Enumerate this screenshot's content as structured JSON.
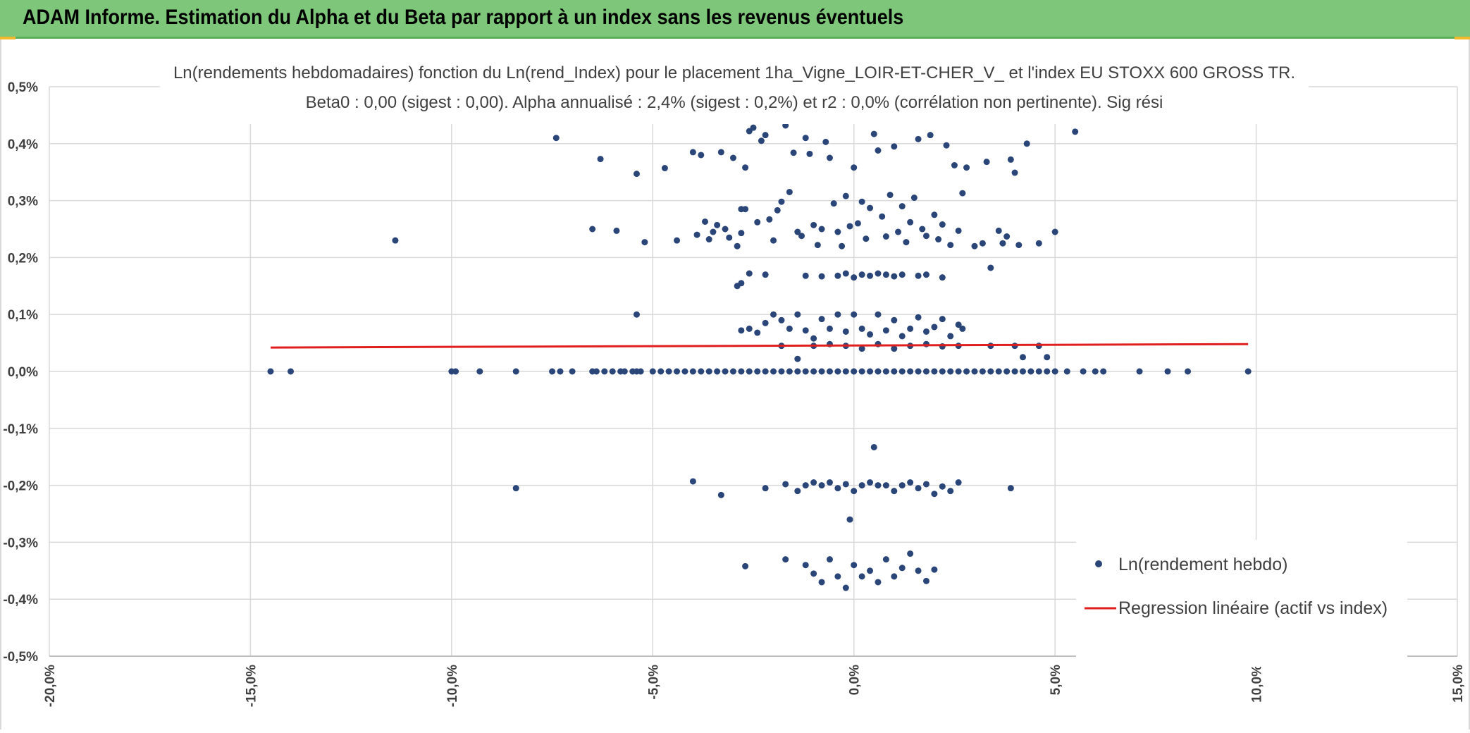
{
  "header": {
    "title": "ADAM Informe. Estimation du Alpha et du Beta par rapport à un index sans les revenus éventuels"
  },
  "colors": {
    "header_bg": "#7dc67a",
    "series": "#2a4577",
    "regression": "#e01e1e",
    "grid": "#d9d9d9",
    "accent": "#f2b92c"
  },
  "chart_data": {
    "type": "scatter",
    "title": "Ln(rendements hebdomadaires) fonction du Ln(rend_Index) pour le placement 1ha_Vigne_LOIR-ET-CHER_V_ et l'index EU STOXX 600 GROSS TR.",
    "subtitle": "Beta0 : 0,00 (sigest : 0,00). Alpha annualisé : 2,4% (sigest : 0,2%) et r2 : 0,0% (corrélation non pertinente). Sig rési",
    "xlim": [
      -0.2,
      0.15
    ],
    "ylim": [
      -0.005,
      0.005
    ],
    "x_ticks": [
      -0.2,
      -0.15,
      -0.1,
      -0.05,
      0.0,
      0.05,
      0.1,
      0.15
    ],
    "y_ticks": [
      0.005,
      0.004,
      0.003,
      0.002,
      0.001,
      0.0,
      -0.001,
      -0.002,
      -0.003,
      -0.004,
      -0.005
    ],
    "x_tick_labels": [
      "-20,0%",
      "-15,0%",
      "-10,0%",
      "-5,0%",
      "0,0%",
      "5,0%",
      "10,0%",
      "15,0%"
    ],
    "y_tick_labels": [
      "0,5%",
      "0,4%",
      "0,3%",
      "0,2%",
      "0,1%",
      "0,0%",
      "-0,1%",
      "-0,2%",
      "-0,3%",
      "-0,4%",
      "-0,5%"
    ],
    "grid": true,
    "legend_position": "bottom-right",
    "legend": {
      "points_label": "Ln(rendement hebdo)",
      "line_label": "Regression linéaire (actif vs index)"
    },
    "series": [
      {
        "name": "Ln(rendement hebdo)",
        "kind": "points",
        "points": [
          [
            -0.145,
            0
          ],
          [
            -0.14,
            0
          ],
          [
            -0.1,
            0
          ],
          [
            -0.099,
            0
          ],
          [
            -0.093,
            0
          ],
          [
            -0.084,
            0
          ],
          [
            -0.075,
            0
          ],
          [
            -0.073,
            0
          ],
          [
            -0.07,
            0
          ],
          [
            -0.065,
            0
          ],
          [
            -0.064,
            0
          ],
          [
            -0.062,
            0
          ],
          [
            -0.06,
            0
          ],
          [
            -0.058,
            0
          ],
          [
            -0.057,
            0
          ],
          [
            -0.055,
            0
          ],
          [
            -0.054,
            0
          ],
          [
            -0.053,
            0
          ],
          [
            -0.05,
            0
          ],
          [
            -0.048,
            0
          ],
          [
            -0.046,
            0
          ],
          [
            -0.044,
            0
          ],
          [
            -0.042,
            0
          ],
          [
            -0.04,
            0
          ],
          [
            -0.038,
            0
          ],
          [
            -0.036,
            0
          ],
          [
            -0.034,
            0
          ],
          [
            -0.032,
            0
          ],
          [
            -0.03,
            0
          ],
          [
            -0.028,
            0
          ],
          [
            -0.026,
            0
          ],
          [
            -0.024,
            0
          ],
          [
            -0.022,
            0
          ],
          [
            -0.02,
            0
          ],
          [
            -0.018,
            0
          ],
          [
            -0.016,
            0
          ],
          [
            -0.014,
            0
          ],
          [
            -0.012,
            0
          ],
          [
            -0.01,
            0
          ],
          [
            -0.008,
            0
          ],
          [
            -0.006,
            0
          ],
          [
            -0.004,
            0
          ],
          [
            -0.002,
            0
          ],
          [
            0.0,
            0
          ],
          [
            0.002,
            0
          ],
          [
            0.004,
            0
          ],
          [
            0.006,
            0
          ],
          [
            0.008,
            0
          ],
          [
            0.01,
            0
          ],
          [
            0.012,
            0
          ],
          [
            0.014,
            0
          ],
          [
            0.016,
            0
          ],
          [
            0.018,
            0
          ],
          [
            0.02,
            0
          ],
          [
            0.022,
            0
          ],
          [
            0.024,
            0
          ],
          [
            0.026,
            0
          ],
          [
            0.028,
            0
          ],
          [
            0.03,
            0
          ],
          [
            0.032,
            0
          ],
          [
            0.034,
            0
          ],
          [
            0.036,
            0
          ],
          [
            0.038,
            0
          ],
          [
            0.04,
            0
          ],
          [
            0.042,
            0
          ],
          [
            0.044,
            0
          ],
          [
            0.046,
            0
          ],
          [
            0.048,
            0
          ],
          [
            0.05,
            0
          ],
          [
            0.053,
            0
          ],
          [
            0.057,
            0
          ],
          [
            0.06,
            0
          ],
          [
            0.062,
            0
          ],
          [
            0.071,
            0
          ],
          [
            0.078,
            0
          ],
          [
            0.083,
            0
          ],
          [
            0.098,
            0
          ],
          [
            -0.114,
            0.0023
          ],
          [
            -0.074,
            0.0041
          ],
          [
            -0.063,
            0.00373
          ],
          [
            -0.065,
            0.0025
          ],
          [
            -0.059,
            0.00247
          ],
          [
            -0.054,
            0.00347
          ],
          [
            -0.054,
            0.001
          ],
          [
            -0.052,
            0.00227
          ],
          [
            -0.047,
            0.00357
          ],
          [
            -0.044,
            0.0023
          ],
          [
            -0.04,
            0.00385
          ],
          [
            -0.039,
            0.0024
          ],
          [
            -0.038,
            0.0038
          ],
          [
            -0.037,
            0.00263
          ],
          [
            -0.036,
            0.00232
          ],
          [
            -0.035,
            0.00245
          ],
          [
            -0.034,
            0.00257
          ],
          [
            -0.033,
            0.00385
          ],
          [
            -0.032,
            0.0025
          ],
          [
            -0.031,
            0.00235
          ],
          [
            -0.03,
            0.00375
          ],
          [
            -0.029,
            0.0022
          ],
          [
            -0.028,
            0.00243
          ],
          [
            -0.027,
            0.00358
          ],
          [
            -0.029,
            0.0015
          ],
          [
            -0.028,
            0.00285
          ],
          [
            -0.027,
            0.00285
          ],
          [
            -0.026,
            0.00422
          ],
          [
            -0.025,
            0.00428
          ],
          [
            -0.024,
            0.00262
          ],
          [
            -0.023,
            0.00405
          ],
          [
            -0.022,
            0.00415
          ],
          [
            -0.021,
            0.00267
          ],
          [
            -0.02,
            0.0023
          ],
          [
            -0.019,
            0.00283
          ],
          [
            -0.018,
            0.00298
          ],
          [
            -0.017,
            0.00432
          ],
          [
            -0.016,
            0.00315
          ],
          [
            -0.015,
            0.00384
          ],
          [
            -0.014,
            0.00245
          ],
          [
            -0.013,
            0.00238
          ],
          [
            -0.012,
            0.0041
          ],
          [
            -0.011,
            0.00382
          ],
          [
            -0.01,
            0.00257
          ],
          [
            -0.009,
            0.00222
          ],
          [
            -0.008,
            0.0025
          ],
          [
            -0.007,
            0.00403
          ],
          [
            -0.006,
            0.00375
          ],
          [
            -0.005,
            0.00295
          ],
          [
            -0.004,
            0.00245
          ],
          [
            -0.003,
            0.0022
          ],
          [
            -0.002,
            0.00308
          ],
          [
            -0.001,
            0.00255
          ],
          [
            0.0,
            0.00358
          ],
          [
            0.001,
            0.0026
          ],
          [
            0.002,
            0.00298
          ],
          [
            0.003,
            0.00233
          ],
          [
            0.004,
            0.00287
          ],
          [
            0.005,
            0.00417
          ],
          [
            0.006,
            0.00388
          ],
          [
            0.007,
            0.00272
          ],
          [
            0.008,
            0.00237
          ],
          [
            0.009,
            0.0031
          ],
          [
            0.01,
            0.00395
          ],
          [
            0.011,
            0.00245
          ],
          [
            0.012,
            0.0029
          ],
          [
            0.013,
            0.00227
          ],
          [
            0.014,
            0.00262
          ],
          [
            0.015,
            0.00305
          ],
          [
            0.016,
            0.00408
          ],
          [
            0.017,
            0.0025
          ],
          [
            0.018,
            0.00238
          ],
          [
            0.019,
            0.00415
          ],
          [
            0.02,
            0.00275
          ],
          [
            0.021,
            0.00232
          ],
          [
            0.022,
            0.00258
          ],
          [
            0.023,
            0.00397
          ],
          [
            0.024,
            0.00222
          ],
          [
            0.025,
            0.00362
          ],
          [
            0.026,
            0.00247
          ],
          [
            0.027,
            0.00313
          ],
          [
            0.028,
            0.00358
          ],
          [
            0.03,
            0.0022
          ],
          [
            0.032,
            0.00225
          ],
          [
            0.033,
            0.00368
          ],
          [
            0.034,
            0.00182
          ],
          [
            0.036,
            0.00247
          ],
          [
            0.037,
            0.00225
          ],
          [
            0.038,
            0.00237
          ],
          [
            0.039,
            0.00372
          ],
          [
            0.04,
            0.00349
          ],
          [
            0.041,
            0.00222
          ],
          [
            0.043,
            0.004
          ],
          [
            0.046,
            0.00225
          ],
          [
            0.05,
            0.00245
          ],
          [
            0.055,
            0.00421
          ],
          [
            -0.028,
            0.00155
          ],
          [
            -0.026,
            0.00172
          ],
          [
            -0.022,
            0.0017
          ],
          [
            -0.012,
            0.00168
          ],
          [
            -0.008,
            0.00167
          ],
          [
            -0.004,
            0.00168
          ],
          [
            -0.002,
            0.00172
          ],
          [
            0.0,
            0.00165
          ],
          [
            0.002,
            0.0017
          ],
          [
            0.004,
            0.00168
          ],
          [
            0.006,
            0.00172
          ],
          [
            0.008,
            0.0017
          ],
          [
            0.01,
            0.00167
          ],
          [
            0.012,
            0.0017
          ],
          [
            0.016,
            0.00168
          ],
          [
            0.018,
            0.0017
          ],
          [
            0.022,
            0.00165
          ],
          [
            -0.028,
            0.00072
          ],
          [
            -0.026,
            0.00075
          ],
          [
            -0.024,
            0.00068
          ],
          [
            -0.022,
            0.00085
          ],
          [
            -0.02,
            0.001
          ],
          [
            -0.018,
            0.0009
          ],
          [
            -0.016,
            0.00075
          ],
          [
            -0.014,
            0.001
          ],
          [
            -0.012,
            0.00072
          ],
          [
            -0.01,
            0.00058
          ],
          [
            -0.008,
            0.00092
          ],
          [
            -0.006,
            0.00075
          ],
          [
            -0.004,
            0.001
          ],
          [
            -0.002,
            0.0007
          ],
          [
            0.0,
            0.001
          ],
          [
            0.002,
            0.00075
          ],
          [
            0.004,
            0.00065
          ],
          [
            0.006,
            0.001
          ],
          [
            0.008,
            0.00072
          ],
          [
            0.01,
            0.0009
          ],
          [
            0.012,
            0.00062
          ],
          [
            0.014,
            0.00075
          ],
          [
            0.016,
            0.00095
          ],
          [
            0.018,
            0.0007
          ],
          [
            0.02,
            0.00078
          ],
          [
            0.022,
            0.00092
          ],
          [
            0.024,
            0.00062
          ],
          [
            0.026,
            0.00082
          ],
          [
            0.027,
            0.00075
          ],
          [
            -0.018,
            0.00045
          ],
          [
            -0.014,
            0.00022
          ],
          [
            -0.01,
            0.00045
          ],
          [
            -0.006,
            0.00048
          ],
          [
            -0.002,
            0.00045
          ],
          [
            0.002,
            0.0004
          ],
          [
            0.006,
            0.00048
          ],
          [
            0.01,
            0.0004
          ],
          [
            0.014,
            0.00045
          ],
          [
            0.018,
            0.00048
          ],
          [
            0.022,
            0.00044
          ],
          [
            0.026,
            0.00045
          ],
          [
            0.034,
            0.00045
          ],
          [
            0.04,
            0.00045
          ],
          [
            0.042,
            0.00025
          ],
          [
            0.046,
            0.00045
          ],
          [
            0.048,
            0.00025
          ],
          [
            -0.084,
            -0.00205
          ],
          [
            -0.04,
            -0.00193
          ],
          [
            -0.033,
            -0.00217
          ],
          [
            -0.022,
            -0.00205
          ],
          [
            -0.017,
            -0.00198
          ],
          [
            -0.014,
            -0.0021
          ],
          [
            -0.012,
            -0.002
          ],
          [
            -0.01,
            -0.00195
          ],
          [
            -0.008,
            -0.002
          ],
          [
            -0.006,
            -0.00195
          ],
          [
            -0.004,
            -0.00205
          ],
          [
            -0.002,
            -0.00198
          ],
          [
            0.0,
            -0.0021
          ],
          [
            0.002,
            -0.002
          ],
          [
            0.004,
            -0.00195
          ],
          [
            0.006,
            -0.002
          ],
          [
            0.008,
            -0.002
          ],
          [
            0.01,
            -0.0021
          ],
          [
            0.012,
            -0.002
          ],
          [
            0.014,
            -0.00195
          ],
          [
            0.016,
            -0.00205
          ],
          [
            0.018,
            -0.00198
          ],
          [
            0.02,
            -0.00215
          ],
          [
            0.022,
            -0.00202
          ],
          [
            0.024,
            -0.0021
          ],
          [
            0.026,
            -0.00195
          ],
          [
            0.039,
            -0.00205
          ],
          [
            0.005,
            -0.00133
          ],
          [
            -0.001,
            -0.0026
          ],
          [
            -0.027,
            -0.00342
          ],
          [
            -0.017,
            -0.0033
          ],
          [
            -0.012,
            -0.0034
          ],
          [
            -0.01,
            -0.00355
          ],
          [
            -0.008,
            -0.0037
          ],
          [
            -0.006,
            -0.0033
          ],
          [
            -0.004,
            -0.0036
          ],
          [
            -0.002,
            -0.0038
          ],
          [
            0.0,
            -0.0034
          ],
          [
            0.002,
            -0.0036
          ],
          [
            0.004,
            -0.0035
          ],
          [
            0.006,
            -0.0037
          ],
          [
            0.008,
            -0.0033
          ],
          [
            0.01,
            -0.0036
          ],
          [
            0.012,
            -0.00345
          ],
          [
            0.014,
            -0.0032
          ],
          [
            0.016,
            -0.0035
          ],
          [
            0.018,
            -0.00368
          ],
          [
            0.02,
            -0.00348
          ]
        ]
      },
      {
        "name": "Regression linéaire (actif vs index)",
        "kind": "line",
        "points": [
          [
            -0.145,
            0.00042
          ],
          [
            0.098,
            0.00048
          ]
        ]
      }
    ]
  }
}
